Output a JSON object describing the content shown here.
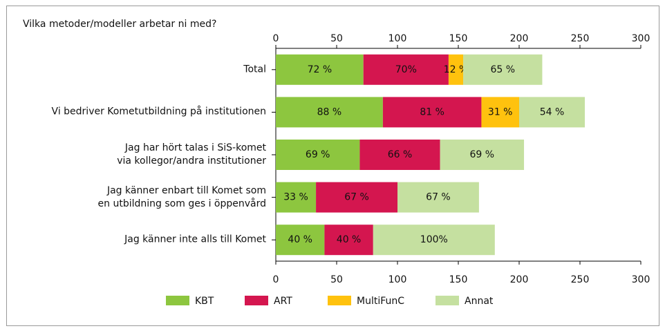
{
  "chart_data": {
    "type": "stacked_barh",
    "title": "Vilka metoder/modeller arbetar ni med?",
    "categories": [
      "Total",
      "Vi bedriver Kometutbildning på institutionen",
      "Jag har hört talas i SiS-komet\nvia kollegor/andra institutioner",
      "Jag känner enbart till Komet som\nen utbildning som ges i öppenvård",
      "Jag känner inte alls till Komet"
    ],
    "series": [
      {
        "name": "KBT",
        "color": "#8dc63f",
        "values": [
          72,
          88,
          69,
          33,
          40
        ],
        "value_labels": [
          "72 %",
          "88 %",
          "69 %",
          "33 %",
          "40 %"
        ]
      },
      {
        "name": "ART",
        "color": "#d4164f",
        "values": [
          70,
          81,
          66,
          67,
          40
        ],
        "value_labels": [
          "70%",
          "81 %",
          "66 %",
          "67 %",
          "40 %"
        ]
      },
      {
        "name": "MultiFunC",
        "color": "#ffc20e",
        "values": [
          12,
          31,
          null,
          null,
          null
        ],
        "value_labels": [
          "12 %",
          "31 %",
          null,
          null,
          null
        ]
      },
      {
        "name": "Annat",
        "color": "#c5e0a0",
        "values": [
          65,
          54,
          69,
          67,
          100
        ],
        "value_labels": [
          "65 %",
          "54 %",
          "69 %",
          "67 %",
          "100%"
        ]
      }
    ],
    "xlim": [
      0,
      300
    ],
    "xticks": [
      0,
      50,
      100,
      150,
      200,
      250,
      300
    ]
  }
}
